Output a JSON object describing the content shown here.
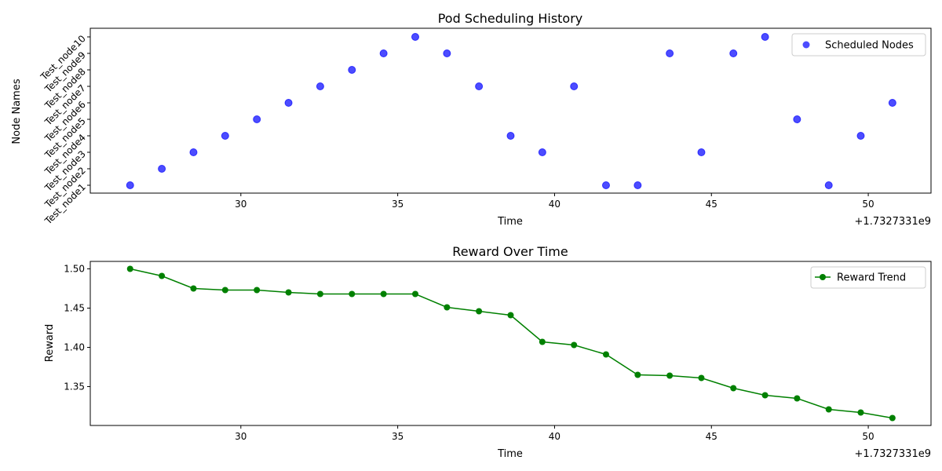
{
  "chart_data": [
    {
      "type": "scatter",
      "title": "Pod Scheduling History",
      "xlabel": "Time",
      "ylabel": "Node Names",
      "x_offset_label": "+1.7327331e9",
      "x_ticks": [
        30,
        35,
        40,
        45,
        50
      ],
      "xlim": [
        25.2,
        52.0
      ],
      "y_categories": [
        "Test_node1",
        "Test_node2",
        "Test_node3",
        "Test_node4",
        "Test_node5",
        "Test_node6",
        "Test_node7",
        "Test_node8",
        "Test_node9",
        "Test_node10"
      ],
      "legend": {
        "label": "Scheduled Nodes",
        "placement": "upper right"
      },
      "color": "#0000ff",
      "points": [
        {
          "x": 26.47,
          "y": "Test_node1"
        },
        {
          "x": 27.48,
          "y": "Test_node2"
        },
        {
          "x": 28.49,
          "y": "Test_node3"
        },
        {
          "x": 29.5,
          "y": "Test_node4"
        },
        {
          "x": 30.51,
          "y": "Test_node5"
        },
        {
          "x": 31.52,
          "y": "Test_node6"
        },
        {
          "x": 32.53,
          "y": "Test_node7"
        },
        {
          "x": 33.54,
          "y": "Test_node8"
        },
        {
          "x": 34.55,
          "y": "Test_node9"
        },
        {
          "x": 35.56,
          "y": "Test_node10"
        },
        {
          "x": 36.57,
          "y": "Test_node9"
        },
        {
          "x": 37.59,
          "y": "Test_node7"
        },
        {
          "x": 38.6,
          "y": "Test_node4"
        },
        {
          "x": 39.61,
          "y": "Test_node3"
        },
        {
          "x": 40.62,
          "y": "Test_node7"
        },
        {
          "x": 41.64,
          "y": "Test_node1"
        },
        {
          "x": 42.65,
          "y": "Test_node1"
        },
        {
          "x": 43.67,
          "y": "Test_node9"
        },
        {
          "x": 44.68,
          "y": "Test_node3"
        },
        {
          "x": 45.7,
          "y": "Test_node9"
        },
        {
          "x": 46.71,
          "y": "Test_node10"
        },
        {
          "x": 47.73,
          "y": "Test_node5"
        },
        {
          "x": 48.74,
          "y": "Test_node1"
        },
        {
          "x": 49.76,
          "y": "Test_node4"
        },
        {
          "x": 50.77,
          "y": "Test_node6"
        }
      ]
    },
    {
      "type": "line",
      "title": "Reward Over Time",
      "xlabel": "Time",
      "ylabel": "Reward",
      "x_offset_label": "+1.7327331e9",
      "x_ticks": [
        30,
        35,
        40,
        45,
        50
      ],
      "y_ticks": [
        "1.35",
        "1.40",
        "1.45",
        "1.50"
      ],
      "xlim": [
        25.2,
        52.0
      ],
      "ylim": [
        1.3005,
        1.5095
      ],
      "legend": {
        "label": "Reward Trend",
        "placement": "upper right"
      },
      "color": "#008000",
      "x": [
        26.47,
        27.48,
        28.49,
        29.5,
        30.51,
        31.52,
        32.53,
        33.54,
        34.55,
        35.56,
        36.57,
        37.59,
        38.6,
        39.61,
        40.62,
        41.64,
        42.65,
        43.67,
        44.68,
        45.7,
        46.71,
        47.73,
        48.74,
        49.76,
        50.77
      ],
      "values": [
        1.5,
        1.491,
        1.475,
        1.473,
        1.473,
        1.47,
        1.468,
        1.468,
        1.468,
        1.468,
        1.451,
        1.446,
        1.441,
        1.407,
        1.403,
        1.391,
        1.365,
        1.364,
        1.361,
        1.348,
        1.339,
        1.335,
        1.321,
        1.317,
        1.31
      ]
    }
  ]
}
